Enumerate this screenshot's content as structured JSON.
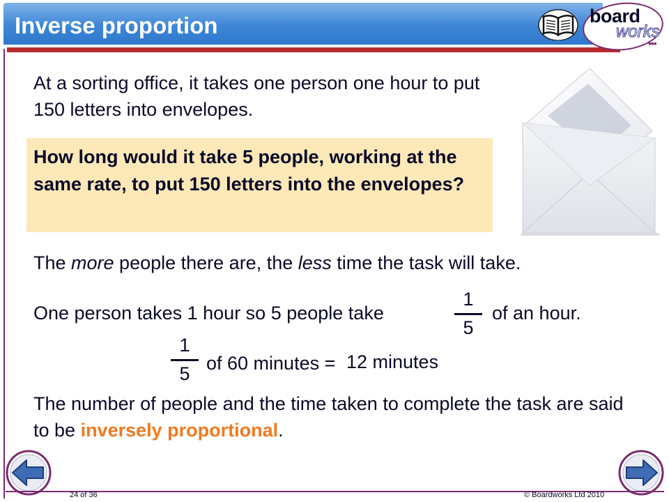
{
  "title": "Inverse proportion",
  "logo": {
    "board": "board",
    "works": "works",
    "dots": "•••"
  },
  "intro": "At a sorting office, it takes one person one hour to put 150 letters into envelopes.",
  "question": "How long would it take 5 people, working at the same rate, to put 150 letters into the envelopes?",
  "more_less": {
    "part1": "The ",
    "more": "more",
    "part2": " people there are, the ",
    "less": "less",
    "part3": " time the task will take."
  },
  "one_person": {
    "text": "One person takes 1 hour so 5 people take",
    "frac_num": "1",
    "frac_den": "5",
    "after": "of an hour."
  },
  "minutes": {
    "frac_num": "1",
    "frac_den": "5",
    "of_sixty": "of 60 minutes =",
    "result": "12 minutes"
  },
  "conclusion": {
    "part1": "The number of people and the time taken to complete the task are said to be ",
    "highlight": "inversely proportional",
    "part2": "."
  },
  "footer": {
    "page": "24 of 36",
    "copyright": "© Boardworks Ltd 2010"
  },
  "icons": {
    "book": "book-icon",
    "prev": "previous-arrow-icon",
    "next": "next-arrow-icon",
    "envelope": "envelope-image"
  },
  "colors": {
    "title_bar": "#3e86d6",
    "underline": "#b8292b",
    "accent": "#f07a20",
    "question_bg": "#fde8b8",
    "border": "#7a2a6e"
  }
}
